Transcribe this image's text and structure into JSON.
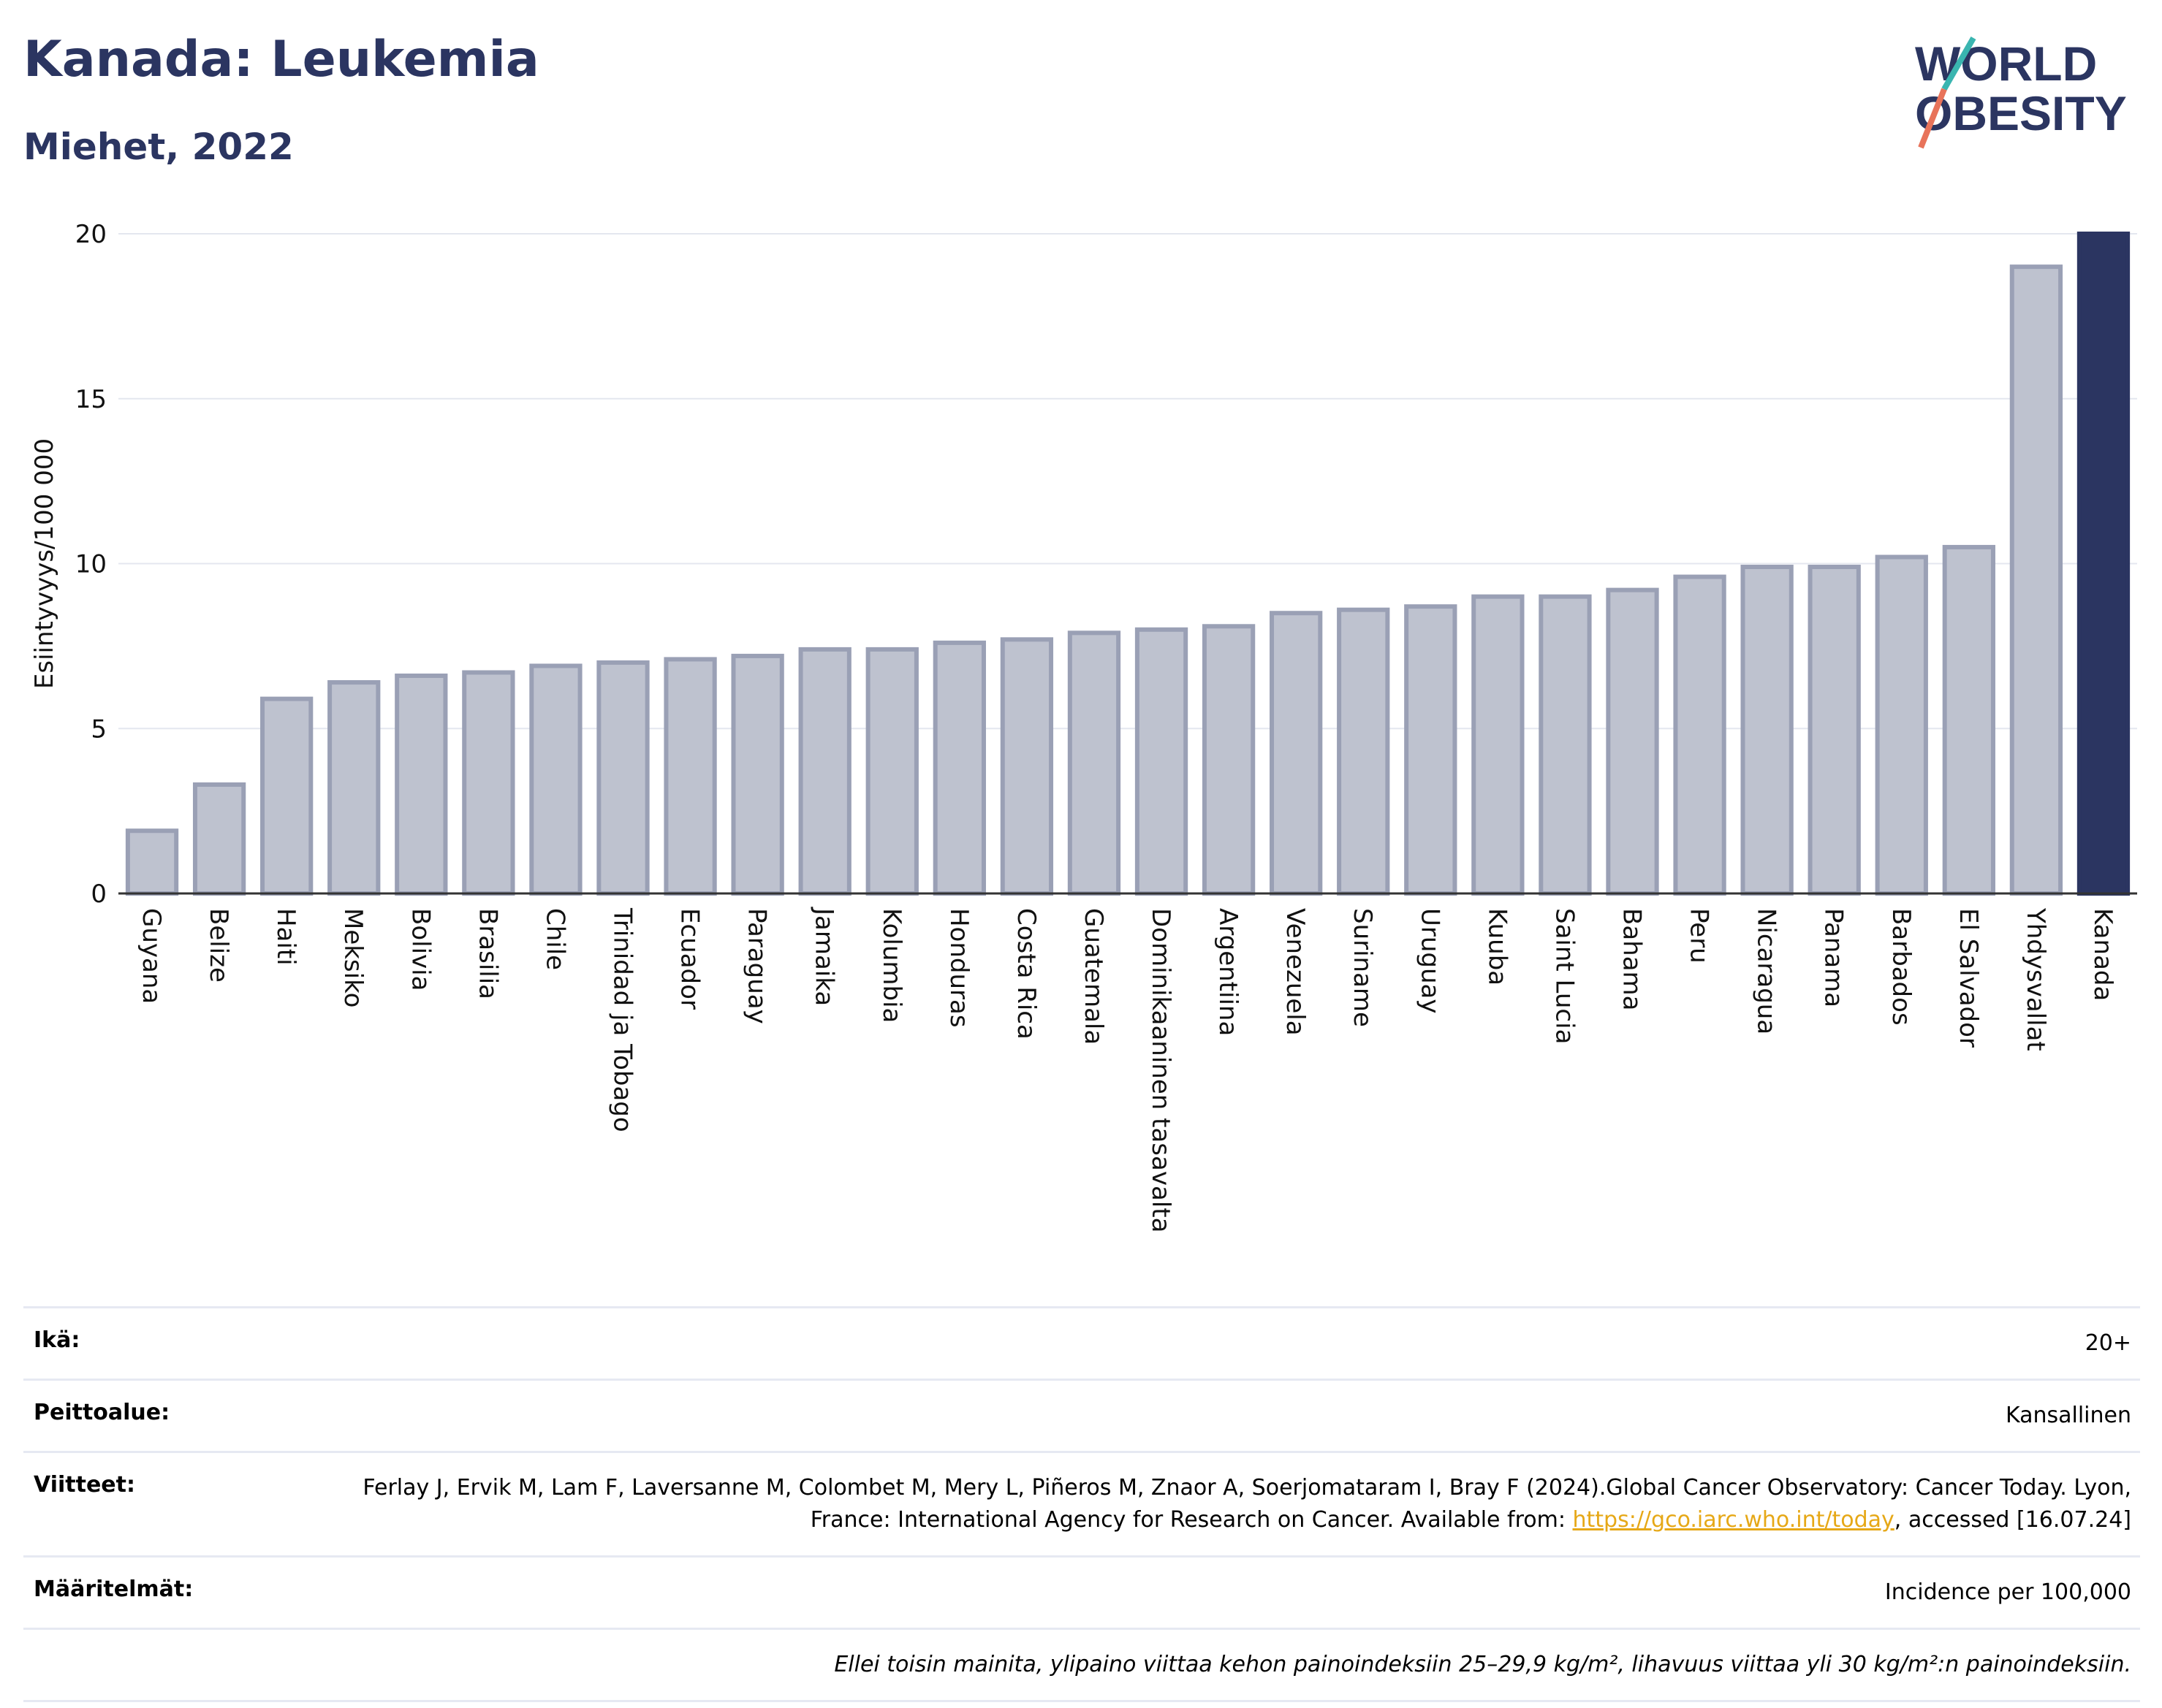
{
  "title": "Kanada: Leukemia",
  "subtitle": "Miehet, 2022",
  "logo": {
    "line1": "WORLD",
    "line2": "OBESITY"
  },
  "chart_data": {
    "type": "bar",
    "title": "Kanada: Leukemia",
    "subtitle": "Miehet, 2022",
    "ylabel": "Esiintyvyys/100 000",
    "xlabel": "",
    "ylim": [
      0,
      20
    ],
    "yticks": [
      0,
      5,
      10,
      15,
      20
    ],
    "grid": true,
    "categories": [
      "Guyana",
      "Belize",
      "Haiti",
      "Meksiko",
      "Bolivia",
      "Brasilia",
      "Chile",
      "Trinidad ja Tobago",
      "Ecuador",
      "Paraguay",
      "Jamaika",
      "Kolumbia",
      "Honduras",
      "Costa Rica",
      "Guatemala",
      "Dominikaaninen tasavalta",
      "Argentiina",
      "Venezuela",
      "Suriname",
      "Uruguay",
      "Kuuba",
      "Saint Lucia",
      "Bahama",
      "Peru",
      "Nicaragua",
      "Panama",
      "Barbados",
      "El Salvador",
      "Yhdysvallat",
      "Kanada"
    ],
    "values": [
      1.9,
      3.3,
      5.9,
      6.4,
      6.6,
      6.7,
      6.9,
      7.0,
      7.1,
      7.2,
      7.4,
      7.4,
      7.6,
      7.7,
      7.9,
      8.0,
      8.1,
      8.5,
      8.6,
      8.7,
      9.0,
      9.0,
      9.2,
      9.6,
      9.9,
      9.9,
      10.2,
      10.5,
      19.0,
      20.0
    ],
    "highlight": "Kanada",
    "colors": {
      "bar": "#bec2cf",
      "bar_border": "#9aa0b5",
      "highlight": "#2b3561"
    }
  },
  "meta": [
    {
      "label": "Ikä:",
      "value": "20+"
    },
    {
      "label": "Peittoalue:",
      "value": "Kansallinen"
    },
    {
      "label": "Viitteet:",
      "value_pre": "Ferlay J, Ervik M, Lam F, Laversanne M, Colombet M, Mery L, Piñeros M, Znaor A, Soerjomataram I, Bray F (2024).Global Cancer Observatory: Cancer Today. Lyon, France: International Agency for Research on Cancer. Available from: ",
      "link": "https://gco.iarc.who.int/today",
      "value_post": ", accessed [16.07.24]"
    },
    {
      "label": "Määritelmät:",
      "value": "Incidence per 100,000"
    }
  ],
  "note": "Ellei toisin mainita, ylipaino viittaa kehon painoindeksiin 25–29,9 kg/m², lihavuus viittaa yli 30 kg/m²:n painoindeksiin."
}
